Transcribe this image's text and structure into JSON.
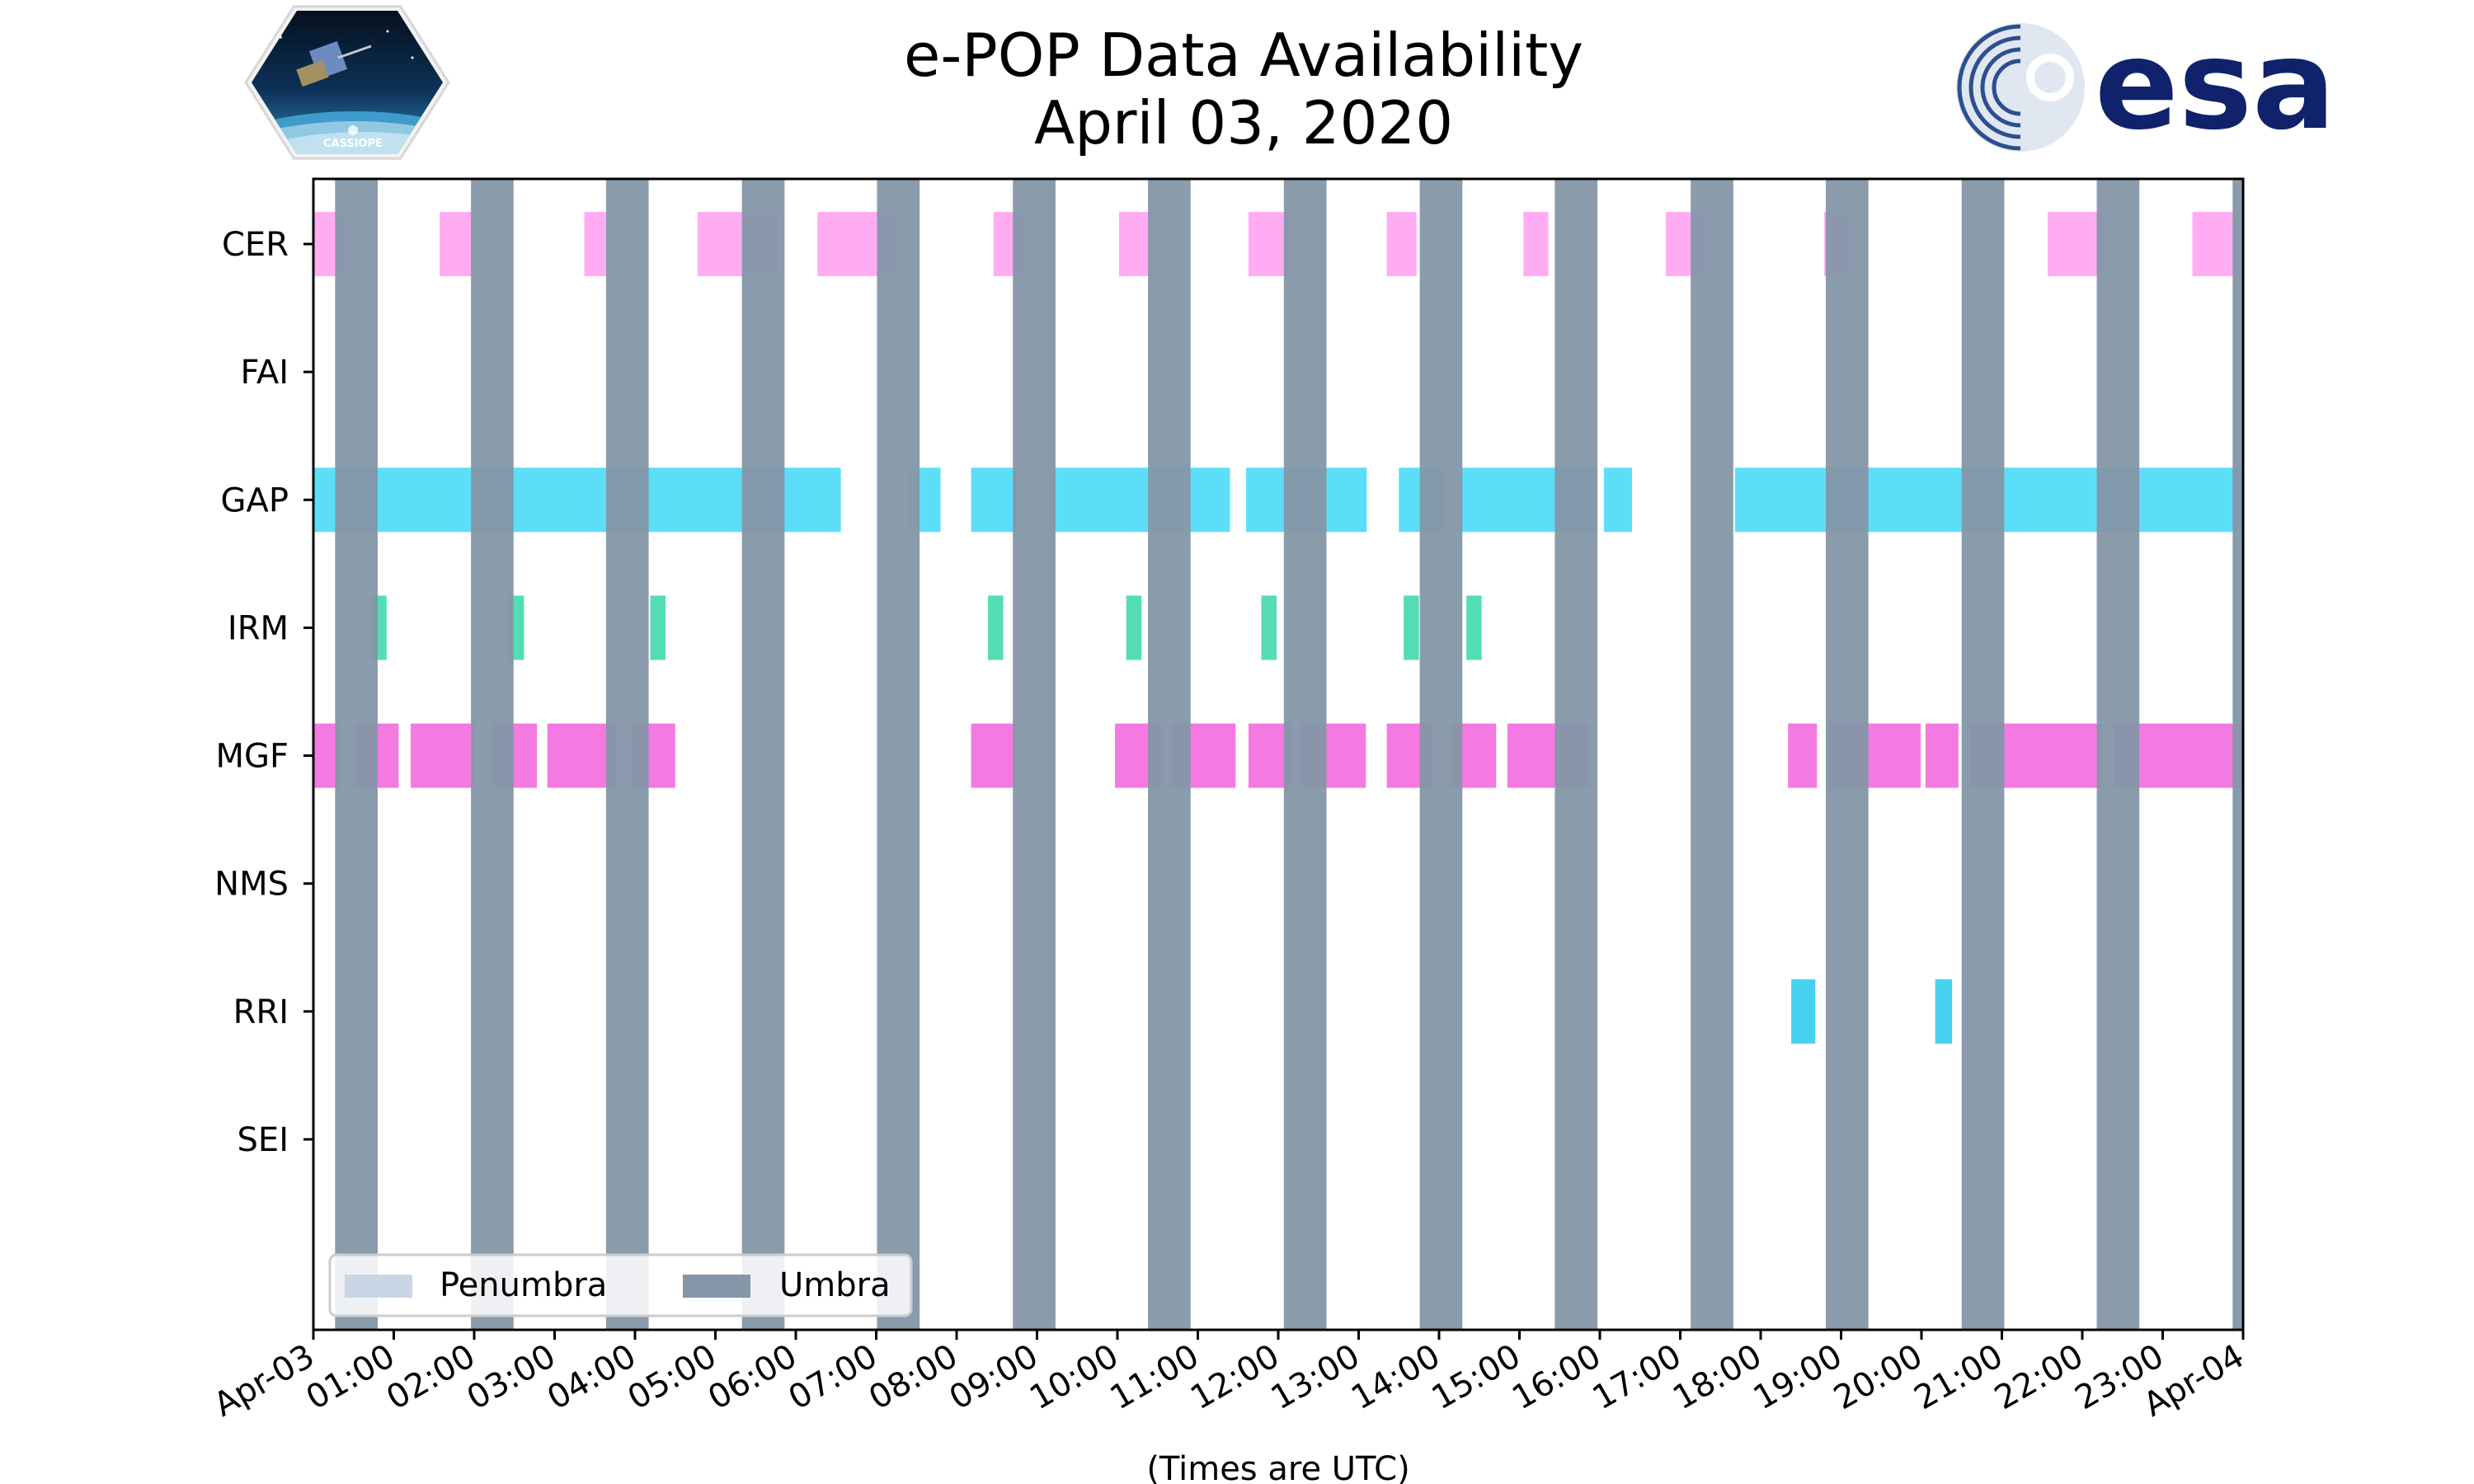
{
  "chart_data": {
    "type": "timeline",
    "title_line1": "e-POP Data Availability",
    "title_line2": "April 03, 2020",
    "xlabel": "(Times are UTC)",
    "xlim_hours": [
      0,
      24
    ],
    "x_tick_labels": [
      "Apr-03",
      "01:00",
      "02:00",
      "03:00",
      "04:00",
      "05:00",
      "06:00",
      "07:00",
      "08:00",
      "09:00",
      "10:00",
      "11:00",
      "12:00",
      "13:00",
      "14:00",
      "15:00",
      "16:00",
      "17:00",
      "18:00",
      "19:00",
      "20:00",
      "21:00",
      "22:00",
      "23:00",
      "Apr-04"
    ],
    "instruments": [
      "CER",
      "FAI",
      "GAP",
      "IRM",
      "MGF",
      "NMS",
      "RRI",
      "SEI"
    ],
    "legend": [
      "Penumbra",
      "Umbra"
    ],
    "colors": {
      "umbra": "#8496a8",
      "penumbra": "#c8d6e6",
      "CER": "#ff9ef0",
      "GAP": "#41d8f7",
      "IRM": "#36d6a8",
      "MGF": "#f263dc",
      "RRI": "#27c9ec"
    },
    "umbra_intervals": [
      [
        0.27,
        0.8
      ],
      [
        1.96,
        2.49
      ],
      [
        3.64,
        4.17
      ],
      [
        5.33,
        5.86
      ],
      [
        7.01,
        7.54
      ],
      [
        8.7,
        9.23
      ],
      [
        10.38,
        10.91
      ],
      [
        12.07,
        12.6
      ],
      [
        13.76,
        14.29
      ],
      [
        15.44,
        15.97
      ],
      [
        17.13,
        17.66
      ],
      [
        18.81,
        19.34
      ],
      [
        20.5,
        21.03
      ],
      [
        22.18,
        22.71
      ],
      [
        23.87,
        24.0
      ]
    ],
    "series": {
      "CER": [
        [
          0.0,
          0.37
        ],
        [
          1.57,
          1.98
        ],
        [
          3.37,
          3.64
        ],
        [
          4.78,
          5.79
        ],
        [
          6.27,
          7.22
        ],
        [
          8.46,
          8.87
        ],
        [
          10.02,
          10.43
        ],
        [
          11.63,
          12.13
        ],
        [
          13.35,
          13.72
        ],
        [
          15.05,
          15.36
        ],
        [
          16.82,
          17.32
        ],
        [
          18.79,
          19.07
        ],
        [
          21.57,
          22.25
        ],
        [
          23.37,
          23.93
        ]
      ],
      "FAI": [],
      "GAP": [
        [
          0.0,
          6.56
        ],
        [
          7.4,
          7.8
        ],
        [
          8.18,
          8.74
        ],
        [
          9.18,
          11.4
        ],
        [
          11.6,
          13.1
        ],
        [
          13.5,
          14.07
        ],
        [
          14.27,
          15.97
        ],
        [
          16.05,
          16.4
        ],
        [
          17.68,
          24.0
        ]
      ],
      "IRM": [
        [
          0.72,
          0.91
        ],
        [
          2.43,
          2.62
        ],
        [
          4.19,
          4.38
        ],
        [
          8.39,
          8.58
        ],
        [
          10.11,
          10.3
        ],
        [
          11.79,
          11.98
        ],
        [
          13.56,
          13.75
        ],
        [
          14.34,
          14.53
        ]
      ],
      "MGF": [
        [
          0.0,
          0.33
        ],
        [
          0.52,
          1.06
        ],
        [
          1.21,
          2.0
        ],
        [
          2.23,
          2.78
        ],
        [
          2.91,
          3.77
        ],
        [
          3.96,
          4.5
        ],
        [
          8.18,
          8.73
        ],
        [
          9.97,
          10.54
        ],
        [
          10.67,
          11.47
        ],
        [
          11.63,
          12.16
        ],
        [
          12.28,
          13.09
        ],
        [
          13.35,
          13.91
        ],
        [
          14.15,
          14.71
        ],
        [
          14.85,
          15.86
        ],
        [
          18.34,
          18.7
        ],
        [
          18.85,
          19.99
        ],
        [
          20.05,
          20.46
        ],
        [
          20.6,
          22.25
        ],
        [
          22.4,
          24.0
        ]
      ],
      "NMS": [],
      "RRI": [
        [
          18.38,
          18.68
        ],
        [
          20.17,
          20.38
        ]
      ],
      "SEI": []
    }
  },
  "logos": {
    "left_caption": "CASSIOPE",
    "right_text": "esa"
  }
}
